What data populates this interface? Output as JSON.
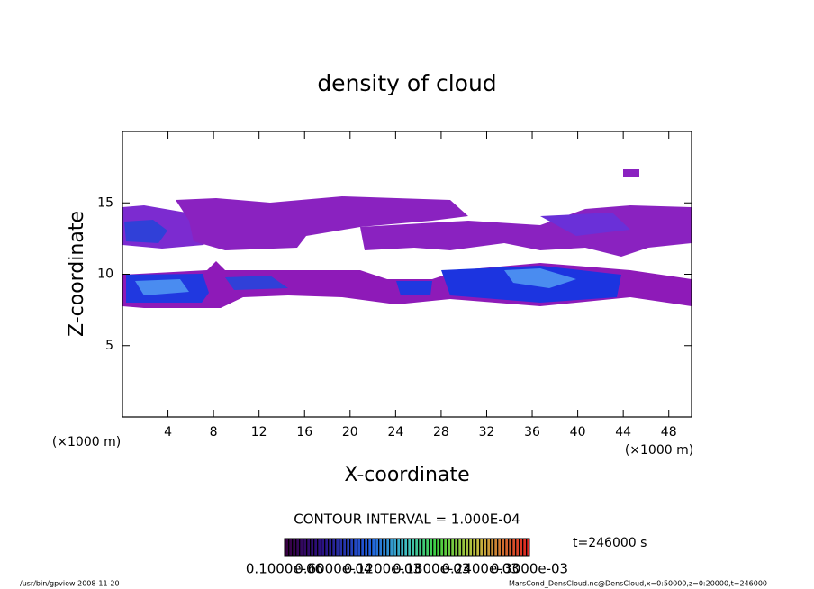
{
  "chart_data": {
    "type": "contour",
    "title": "density of cloud",
    "xlabel": "X-coordinate",
    "ylabel": "Z-coordinate",
    "x_unit": "(×1000 m)",
    "y_unit": "(×1000 m)",
    "xlim": [
      0,
      50
    ],
    "ylim": [
      0,
      20
    ],
    "xticks": [
      4,
      8,
      12,
      16,
      20,
      24,
      28,
      32,
      36,
      40,
      44,
      48
    ],
    "yticks": [
      5,
      10,
      15
    ],
    "contour_interval": "CONTOUR INTERVAL = 1.000E-04",
    "time": "t=246000 s",
    "colorbar_labels": [
      "0.1000e-06",
      "0.6000e-04",
      "0.1200e-03",
      "0.1800e-03",
      "0.2400e-03",
      "0.3000e-03"
    ],
    "footer_left": "/usr/bin/gpview   2008-11-20",
    "footer_right": "MarsCond_DensCloud.nc@DensCloud,x=0:50000,z=0:20000,t=246000"
  }
}
